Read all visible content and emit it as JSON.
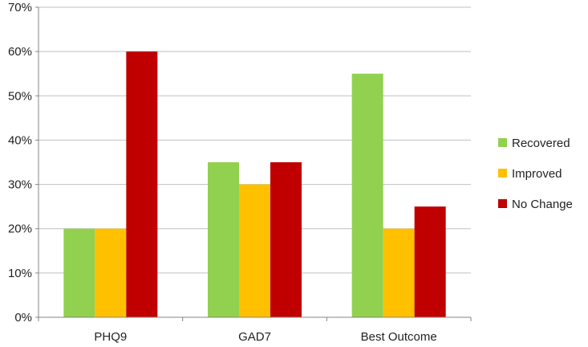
{
  "chart_data": {
    "type": "bar",
    "title": "",
    "xlabel": "",
    "ylabel": "",
    "categories": [
      "PHQ9",
      "GAD7",
      "Best Outcome"
    ],
    "series": [
      {
        "name": "Recovered",
        "color": "#92d050",
        "values": [
          20,
          35,
          55
        ]
      },
      {
        "name": "Improved",
        "color": "#ffc000",
        "values": [
          20,
          30,
          20
        ]
      },
      {
        "name": "No Change",
        "color": "#c00000",
        "values": [
          60,
          35,
          25
        ]
      }
    ],
    "ylim": [
      0,
      70
    ],
    "yticks": [
      0,
      10,
      20,
      30,
      40,
      50,
      60,
      70
    ],
    "ytick_labels": [
      "0%",
      "10%",
      "20%",
      "30%",
      "40%",
      "50%",
      "60%",
      "70%"
    ],
    "grid": true,
    "legend_position": "right"
  }
}
